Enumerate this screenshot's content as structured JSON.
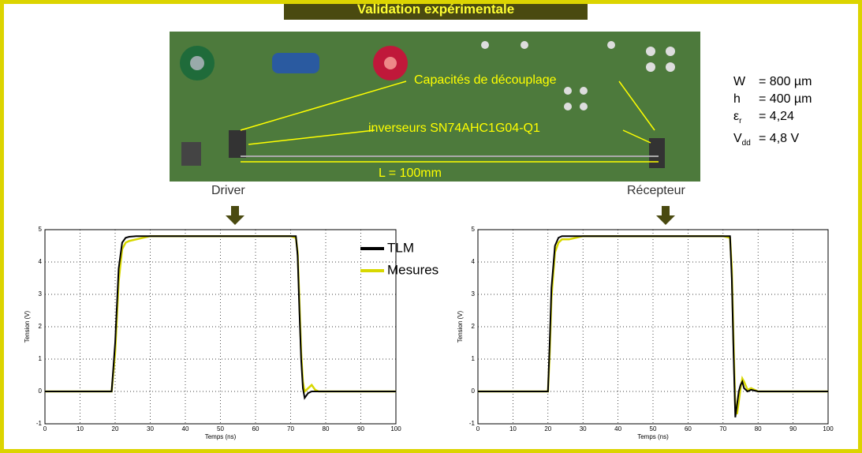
{
  "header": {
    "title": "Validation expérimentale"
  },
  "photo": {
    "annotations": [
      "Capacités de découplage",
      "inverseurs SN74AHC1G04-Q1",
      "L = 100mm"
    ]
  },
  "parameters": [
    {
      "symbol": "W",
      "value": "= 800 µm"
    },
    {
      "symbol": "h",
      "value": "= 400 µm"
    },
    {
      "symbol": "ε",
      "subscript": "r",
      "value": "= 4,24"
    },
    {
      "symbol": "V",
      "subscript": "dd",
      "value": "= 4,8 V"
    }
  ],
  "labels": {
    "driver": "Driver",
    "receiver": "Récepteur"
  },
  "chart_data": [
    {
      "type": "line",
      "xlabel": "Temps (ns)",
      "ylabel": "Tension (V)",
      "x": [
        0,
        19,
        20,
        21,
        22,
        23,
        24,
        26,
        30,
        40,
        50,
        60,
        70,
        71.5,
        72,
        72.5,
        73,
        73.5,
        74,
        75,
        76,
        77,
        78,
        80,
        90,
        100
      ],
      "series": [
        {
          "name": "TLM",
          "color": "#000000",
          "values": [
            0,
            0,
            1.5,
            3.8,
            4.6,
            4.75,
            4.78,
            4.8,
            4.8,
            4.8,
            4.8,
            4.8,
            4.8,
            4.8,
            4.2,
            2.5,
            1,
            0.1,
            -0.2,
            -0.05,
            0,
            0,
            0,
            0,
            0,
            0
          ]
        },
        {
          "name": "Mesures",
          "color": "#d8d800",
          "values": [
            0,
            0,
            1.2,
            3.4,
            4.4,
            4.6,
            4.65,
            4.7,
            4.8,
            4.8,
            4.8,
            4.8,
            4.8,
            4.75,
            4.3,
            2.8,
            1.2,
            0.3,
            0,
            0.1,
            0.2,
            0.05,
            0,
            0,
            0,
            0
          ]
        }
      ],
      "xlim": [
        0,
        100
      ],
      "ylim": [
        -1,
        5
      ],
      "xticks": [
        0,
        10,
        20,
        30,
        40,
        50,
        60,
        70,
        80,
        90,
        100
      ],
      "yticks": [
        -1,
        0,
        1,
        2,
        3,
        4,
        5
      ],
      "grid": true,
      "legend": "right"
    },
    {
      "type": "line",
      "xlabel": "Temps (ns)",
      "ylabel": "Tension (V)",
      "x": [
        0,
        20,
        20.5,
        21,
        22,
        23,
        24,
        26,
        30,
        40,
        50,
        60,
        70,
        72,
        72.5,
        73,
        73.5,
        74,
        74.5,
        75,
        75.5,
        76,
        77,
        78,
        80,
        85,
        90,
        100
      ],
      "series": [
        {
          "color": "#000000",
          "values": [
            0,
            0,
            1.5,
            3.2,
            4.5,
            4.75,
            4.8,
            4.8,
            4.8,
            4.8,
            4.8,
            4.8,
            4.8,
            4.8,
            3.5,
            1.2,
            -0.8,
            -0.4,
            0,
            0.2,
            0.3,
            0.1,
            0,
            0.05,
            0,
            0,
            0,
            0
          ]
        },
        {
          "color": "#d8d800",
          "values": [
            0,
            0,
            1.2,
            2.9,
            4.3,
            4.6,
            4.7,
            4.7,
            4.8,
            4.8,
            4.8,
            4.8,
            4.8,
            4.75,
            3.8,
            1.5,
            -0.5,
            -0.7,
            -0.3,
            0.1,
            0.4,
            0.3,
            0.05,
            0.1,
            0,
            0,
            0,
            0
          ]
        }
      ],
      "xlim": [
        0,
        100
      ],
      "ylim": [
        -1,
        5
      ],
      "xticks": [
        0,
        10,
        20,
        30,
        40,
        50,
        60,
        70,
        80,
        90,
        100
      ],
      "yticks": [
        -1,
        0,
        1,
        2,
        3,
        4,
        5
      ],
      "grid": true
    }
  ]
}
